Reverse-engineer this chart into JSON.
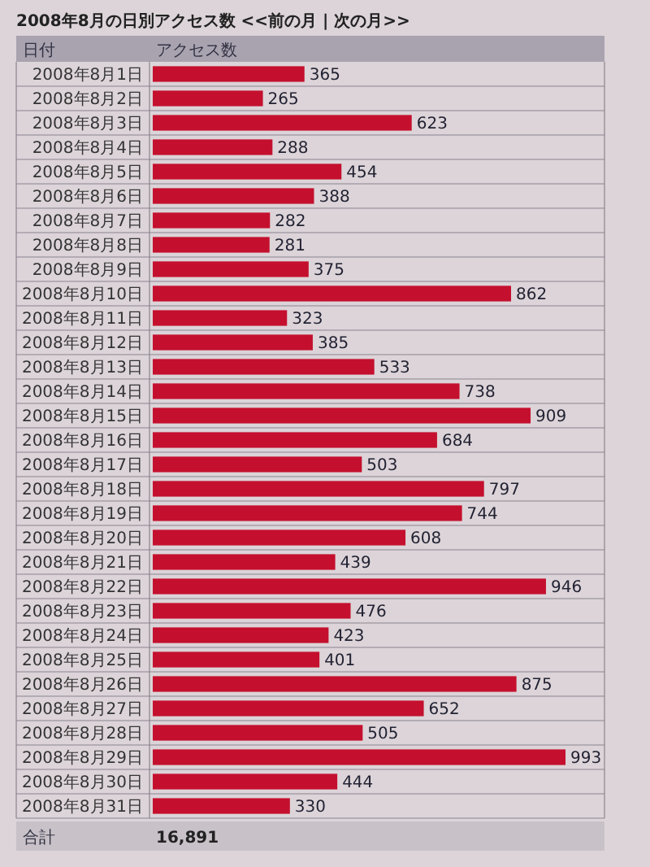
{
  "chart_data": {
    "type": "bar",
    "orientation": "horizontal",
    "title": "2008年8月の日別アクセス数 <<前の月 | 次の月>>",
    "ylabel": "日付",
    "xlabel": "アクセス数",
    "categories": [
      "2008年8月1日",
      "2008年8月2日",
      "2008年8月3日",
      "2008年8月4日",
      "2008年8月5日",
      "2008年8月6日",
      "2008年8月7日",
      "2008年8月8日",
      "2008年8月9日",
      "2008年8月10日",
      "2008年8月11日",
      "2008年8月12日",
      "2008年8月13日",
      "2008年8月14日",
      "2008年8月15日",
      "2008年8月16日",
      "2008年8月17日",
      "2008年8月18日",
      "2008年8月19日",
      "2008年8月20日",
      "2008年8月21日",
      "2008年8月22日",
      "2008年8月23日",
      "2008年8月24日",
      "2008年8月25日",
      "2008年8月26日",
      "2008年8月27日",
      "2008年8月28日",
      "2008年8月29日",
      "2008年8月30日",
      "2008年8月31日"
    ],
    "values": [
      365,
      265,
      623,
      288,
      454,
      388,
      282,
      281,
      375,
      862,
      323,
      385,
      533,
      738,
      909,
      684,
      503,
      797,
      744,
      608,
      439,
      946,
      476,
      423,
      401,
      875,
      652,
      505,
      993,
      444,
      330
    ],
    "color": "#c4102e",
    "data_labels": true,
    "annotations": [
      "合計",
      "16,891"
    ]
  }
}
